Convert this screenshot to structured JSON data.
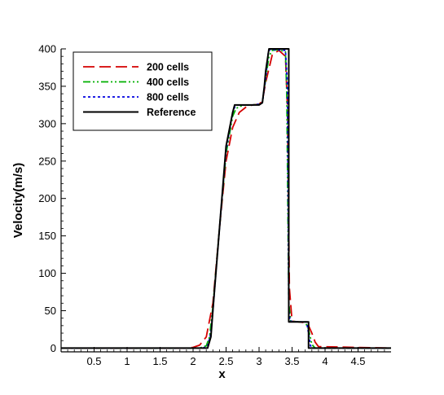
{
  "chart_data": {
    "type": "line",
    "title": "",
    "xlabel": "x",
    "ylabel": "Velocity(m/s)",
    "xlim": [
      0,
      5
    ],
    "ylim": [
      -5,
      400
    ],
    "x_ticks": [
      0.5,
      1,
      1.5,
      2,
      2.5,
      3,
      3.5,
      4,
      4.5
    ],
    "x_tick_labels": [
      "0.5",
      "1",
      "1.5",
      "2",
      "2.5",
      "3",
      "3.5",
      "4",
      "4.5"
    ],
    "y_ticks": [
      0,
      50,
      100,
      150,
      200,
      250,
      300,
      350,
      400
    ],
    "y_tick_labels": [
      "0",
      "50",
      "100",
      "150",
      "200",
      "250",
      "300",
      "350",
      "400"
    ],
    "grid": false,
    "legend_position": "top-left",
    "series": [
      {
        "name": "200 cells",
        "color": "#d40000",
        "dash": "14,6",
        "x": [
          0,
          1.9,
          2.0,
          2.1,
          2.2,
          2.3,
          2.4,
          2.5,
          2.6,
          2.7,
          2.8,
          2.9,
          3.0,
          3.05,
          3.1,
          3.2,
          3.3,
          3.4,
          3.43,
          3.46,
          3.5,
          3.6,
          3.7,
          3.75,
          3.8,
          3.85,
          3.9,
          5
        ],
        "y": [
          0,
          0,
          1,
          4,
          15,
          60,
          160,
          250,
          295,
          315,
          322,
          325,
          326,
          330,
          355,
          392,
          398,
          390,
          320,
          80,
          36,
          35,
          34,
          30,
          20,
          8,
          2,
          0
        ]
      },
      {
        "name": "400 cells",
        "color": "#00b000",
        "dash": "9,3,2,3,2,3",
        "x": [
          0,
          2.1,
          2.2,
          2.25,
          2.3,
          2.4,
          2.5,
          2.6,
          2.65,
          2.7,
          2.8,
          2.9,
          3.0,
          3.05,
          3.1,
          3.15,
          3.2,
          3.3,
          3.4,
          3.42,
          3.45,
          3.48,
          3.6,
          3.7,
          3.75,
          3.8,
          3.85,
          5
        ],
        "y": [
          0,
          0,
          3,
          15,
          55,
          160,
          260,
          310,
          320,
          323,
          325,
          325,
          326,
          328,
          360,
          390,
          398,
          399,
          396,
          340,
          60,
          36,
          35,
          35,
          25,
          5,
          0,
          0
        ]
      },
      {
        "name": "800 cells",
        "color": "#0000e0",
        "dash": "3,3",
        "x": [
          0,
          2.15,
          2.22,
          2.27,
          2.3,
          2.4,
          2.5,
          2.6,
          2.63,
          2.66,
          2.7,
          2.9,
          3.0,
          3.05,
          3.1,
          3.14,
          3.16,
          3.2,
          3.4,
          3.43,
          3.45,
          3.47,
          3.6,
          3.72,
          3.75,
          3.78,
          3.82,
          5
        ],
        "y": [
          0,
          0,
          3,
          20,
          50,
          160,
          265,
          315,
          322,
          325,
          325,
          325,
          326,
          328,
          360,
          395,
          399,
          399,
          398,
          350,
          50,
          36,
          35,
          35,
          20,
          3,
          0,
          0
        ]
      },
      {
        "name": "Reference",
        "color": "#000000",
        "dash": "",
        "x": [
          0,
          2.22,
          2.27,
          2.3,
          2.4,
          2.5,
          2.6,
          2.63,
          3.0,
          3.05,
          3.08,
          3.1,
          3.15,
          3.45,
          3.45,
          3.75,
          3.75,
          5
        ],
        "y": [
          0,
          0,
          15,
          50,
          160,
          270,
          315,
          325,
          325,
          328,
          350,
          370,
          400,
          400,
          35,
          35,
          0,
          0
        ]
      }
    ]
  }
}
